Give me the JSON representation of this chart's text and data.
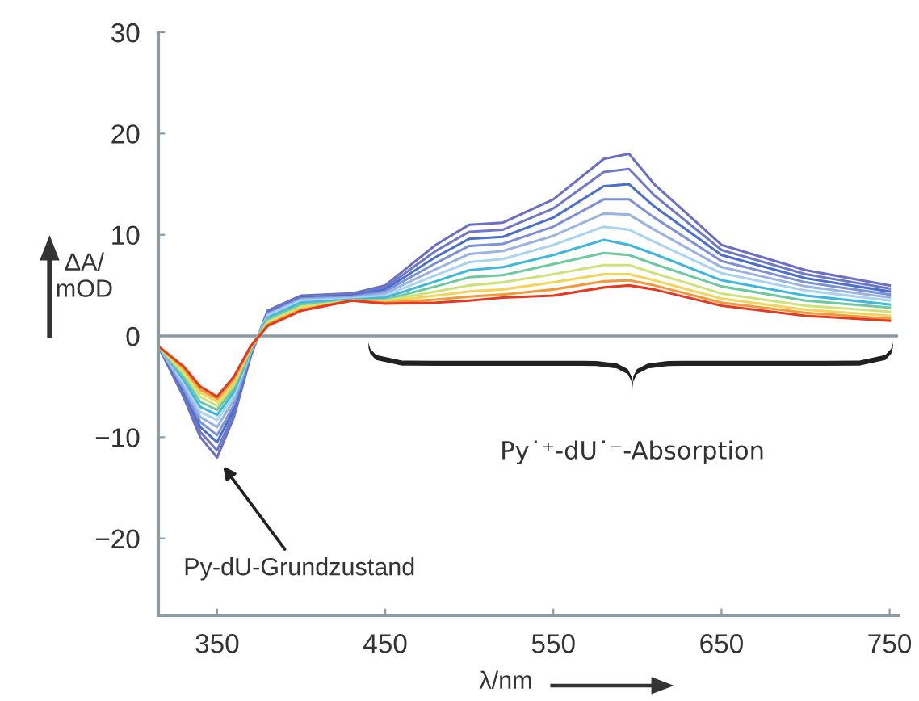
{
  "chart_data": {
    "type": "line",
    "xlabel": "λ/nm",
    "ylabel": "ΔA/\nmOD",
    "x": [
      315,
      330,
      340,
      350,
      360,
      370,
      380,
      400,
      430,
      450,
      480,
      500,
      520,
      550,
      580,
      595,
      610,
      650,
      700,
      750
    ],
    "xlim": [
      315,
      755
    ],
    "xticks": [
      350,
      450,
      550,
      650,
      750
    ],
    "ylim": [
      -27.6,
      30
    ],
    "yticks": [
      -20,
      -10,
      0,
      10,
      20,
      30
    ],
    "grid": false,
    "legend": false,
    "marker": "none",
    "line_style": "solid",
    "ref_lines": [
      {
        "axis": "y",
        "value": 0,
        "color": "#8c9aa3"
      }
    ],
    "annotations": [
      {
        "text": "Py-dU-Grundzustand",
        "x": 352,
        "y": -12.5
      },
      "Py˙⁺-dU˙⁻-Absorption"
    ],
    "series": [
      {
        "color": "#6b6ec2",
        "values": [
          -1,
          -6,
          -10,
          -12,
          -8,
          -2,
          2.5,
          4,
          4.2,
          5,
          9,
          11,
          11.2,
          13.5,
          17.5,
          18,
          15,
          9,
          6.5,
          5
        ]
      },
      {
        "color": "#6f78c8",
        "values": [
          -1,
          -5.8,
          -9.5,
          -11.3,
          -7.6,
          -1.9,
          2.4,
          3.9,
          4.1,
          4.8,
          8.4,
          10.3,
          10.5,
          12.6,
          16.2,
          16.5,
          13.9,
          8.5,
          6.1,
          4.7
        ]
      },
      {
        "color": "#4a6fcc",
        "values": [
          -1,
          -5.5,
          -9,
          -10.5,
          -7.2,
          -1.8,
          2.3,
          3.8,
          4,
          4.6,
          7.8,
          9.6,
          9.8,
          11.7,
          14.8,
          15,
          12.8,
          8,
          5.7,
          4.4
        ]
      },
      {
        "color": "#7e90d6",
        "values": [
          -1,
          -5.2,
          -8.5,
          -9.8,
          -6.8,
          -1.7,
          2.2,
          3.7,
          3.9,
          4.4,
          7.2,
          8.9,
          9.1,
          10.8,
          13.5,
          13.5,
          11.7,
          7.4,
          5.3,
          4.1
        ]
      },
      {
        "color": "#9ab4e2",
        "values": [
          -1,
          -4.9,
          -8,
          -9,
          -6.3,
          -1.6,
          2.1,
          3.6,
          3.8,
          4.2,
          6.6,
          8.1,
          8.4,
          9.9,
          12.1,
          12,
          10.5,
          6.8,
          4.9,
          3.8
        ]
      },
      {
        "color": "#a9d3ee",
        "values": [
          -1,
          -4.6,
          -7.5,
          -8.3,
          -5.9,
          -1.5,
          2,
          3.5,
          3.7,
          4,
          6,
          7.3,
          7.6,
          9,
          10.8,
          10.5,
          9.3,
          6.2,
          4.5,
          3.5
        ]
      },
      {
        "color": "#3fb7dc",
        "values": [
          -1,
          -4.3,
          -7,
          -7.8,
          -5.5,
          -1.4,
          1.8,
          3.3,
          3.6,
          3.8,
          5.4,
          6.5,
          6.8,
          8,
          9.5,
          9,
          8.1,
          5.5,
          4,
          3.1
        ]
      },
      {
        "color": "#6fc9a0",
        "values": [
          -1,
          -4,
          -6.5,
          -7.3,
          -5.1,
          -1.3,
          1.6,
          3.1,
          3.5,
          3.6,
          4.9,
          5.8,
          6,
          7.1,
          8.2,
          8,
          7.1,
          4.9,
          3.5,
          2.8
        ]
      },
      {
        "color": "#cfe27a",
        "values": [
          -1,
          -3.7,
          -6,
          -6.9,
          -4.8,
          -1.2,
          1.4,
          2.9,
          3.5,
          3.5,
          4.4,
          5,
          5.3,
          6.1,
          7,
          7,
          6.2,
          4.2,
          3,
          2.4
        ]
      },
      {
        "color": "#f4d35a",
        "values": [
          -1,
          -3.4,
          -5.6,
          -6.5,
          -4.5,
          -1.1,
          1.2,
          2.7,
          3.5,
          3.4,
          4,
          4.4,
          4.6,
          5.3,
          6.1,
          6.1,
          5.5,
          3.7,
          2.6,
          2
        ]
      },
      {
        "color": "#f29a3a",
        "values": [
          -1,
          -3.2,
          -5.3,
          -6.2,
          -4.2,
          -1,
          1.1,
          2.6,
          3.5,
          3.3,
          3.6,
          3.9,
          4.1,
          4.6,
          5.4,
          5.5,
          5,
          3.3,
          2.3,
          1.7
        ]
      },
      {
        "color": "#e33b22",
        "values": [
          -1,
          -3,
          -5,
          -6,
          -4,
          -1,
          1,
          2.5,
          3.5,
          3.2,
          3.3,
          3.5,
          3.8,
          4,
          4.8,
          5,
          4.6,
          3,
          2,
          1.5
        ]
      }
    ]
  }
}
